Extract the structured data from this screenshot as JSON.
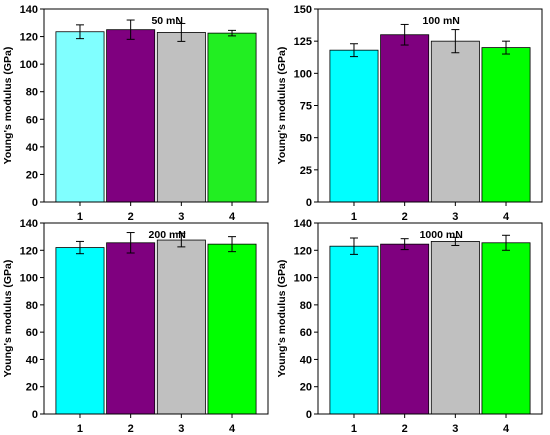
{
  "chart_data": [
    {
      "type": "bar",
      "title": "50 mN",
      "xlabel": "",
      "ylabel": "Young's modulus (GPa)",
      "categories": [
        "1",
        "2",
        "3",
        "4"
      ],
      "values": [
        123.5,
        125,
        123,
        122.5
      ],
      "errors": [
        5,
        7,
        6.5,
        2
      ],
      "ylim": [
        0,
        140
      ],
      "yticks": [
        0,
        20,
        40,
        60,
        80,
        100,
        120,
        140
      ],
      "colors": [
        "#80ffff",
        "#7f007f",
        "#c0c0c0",
        "#22ee22"
      ]
    },
    {
      "type": "bar",
      "title": "100 mN",
      "xlabel": "",
      "ylabel": "Young's modulus (GPa)",
      "categories": [
        "1",
        "2",
        "3",
        "4"
      ],
      "values": [
        118,
        130,
        125,
        120
      ],
      "errors": [
        5,
        8,
        9,
        5
      ],
      "ylim": [
        0,
        150
      ],
      "yticks": [
        0,
        25,
        50,
        75,
        100,
        125,
        150
      ],
      "colors": [
        "#00ffff",
        "#7f007f",
        "#c0c0c0",
        "#00ff00"
      ]
    },
    {
      "type": "bar",
      "title": "200 mN",
      "xlabel": "",
      "ylabel": "Young's modulus (GPa)",
      "categories": [
        "1",
        "2",
        "3",
        "4"
      ],
      "values": [
        122,
        125.5,
        127.5,
        124.5
      ],
      "errors": [
        4.5,
        7.5,
        5,
        5.5
      ],
      "ylim": [
        0,
        140
      ],
      "yticks": [
        0,
        20,
        40,
        60,
        80,
        100,
        120,
        140
      ],
      "colors": [
        "#00ffff",
        "#7f007f",
        "#c0c0c0",
        "#00ff00"
      ]
    },
    {
      "type": "bar",
      "title": "1000 mN",
      "xlabel": "",
      "ylabel": "Young's modulus (GPa)",
      "categories": [
        "1",
        "2",
        "3",
        "4"
      ],
      "values": [
        123,
        124.5,
        126.5,
        125.5
      ],
      "errors": [
        6,
        4,
        3,
        5.5
      ],
      "ylim": [
        0,
        140
      ],
      "yticks": [
        0,
        20,
        40,
        60,
        80,
        100,
        120,
        140
      ],
      "colors": [
        "#00ffff",
        "#7f007f",
        "#c0c0c0",
        "#00ff00"
      ]
    }
  ]
}
